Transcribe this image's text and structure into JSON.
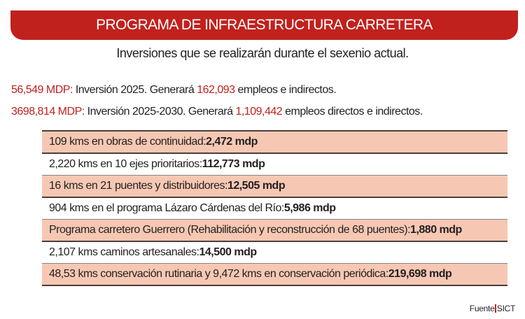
{
  "header": {
    "title": "PROGRAMA DE INFRAESTRUCTURA CARRETERA",
    "subtitle": "Inversiones que se realizarán durante el sexenio actual."
  },
  "stats": [
    {
      "amount": "56,549 MDP:",
      "text1": " Inversión 2025. Generará ",
      "jobs": "162,093",
      "text2": " empleos e indirectos."
    },
    {
      "amount": "3698,814 MDP:",
      "text1": " Inversión 2025-2030. Generará ",
      "jobs": "1,109,442",
      "text2": " empleos directos e indirectos."
    }
  ],
  "items": [
    {
      "label": "109 kms en obras de continuidad: ",
      "value": "2,472 mdp"
    },
    {
      "label": "2,220 kms en 10 ejes prioritarios: ",
      "value": "112,773 mdp"
    },
    {
      "label": "16 kms en 21 puentes y distribuidores: ",
      "value": "12,505 mdp"
    },
    {
      "label": "904 kms en el programa Lázaro Cárdenas del Río: ",
      "value": "5,986 mdp"
    },
    {
      "label": "Programa carretero Guerrero (Rehabilitación y reconstrucción de 68 puentes): ",
      "value": "1,880 mdp"
    },
    {
      "label": "2,107 kms caminos artesanales: ",
      "value": "14,500 mdp"
    },
    {
      "label": "48,53 kms conservación rutinaria y 9,472 kms en conservación periódica: ",
      "value": "219,698 mdp"
    }
  ],
  "source": {
    "label": "Fuente",
    "org": "SICT"
  },
  "colors": {
    "accent": "#c0211d",
    "row_highlight": "#f6c8b3"
  }
}
